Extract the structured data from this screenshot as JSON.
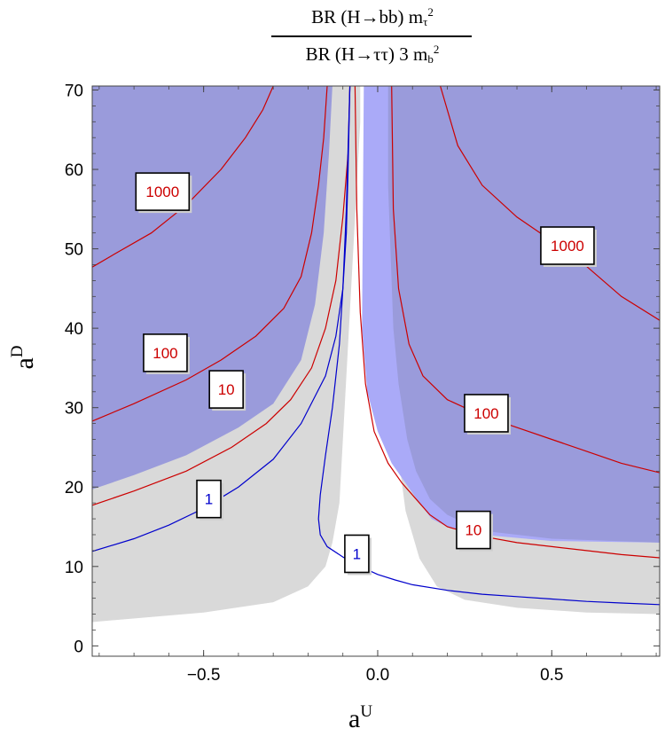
{
  "title": {
    "numerator": {
      "prefix": "BR (H→bb) m",
      "sub": "τ",
      "sup": "2"
    },
    "denominator": {
      "prefix": "BR (H→ττ) 3 m",
      "sub": "b",
      "sup": "2"
    }
  },
  "chart_data": {
    "type": "contour",
    "xlabel": {
      "base": "a",
      "sup": "U"
    },
    "ylabel": {
      "base": "a",
      "sup": "D"
    },
    "xlim": [
      -0.82,
      0.81
    ],
    "ylim": [
      -1.3,
      70.5
    ],
    "x_ticks": [
      -0.5,
      0.0,
      0.5
    ],
    "x_tick_labels": [
      "−0.5",
      "0.0",
      "0.5"
    ],
    "y_ticks": [
      0,
      10,
      20,
      30,
      40,
      50,
      60,
      70
    ],
    "y_tick_labels": [
      "0",
      "10",
      "20",
      "30",
      "40",
      "50",
      "60",
      "70"
    ],
    "colors": {
      "excluded": "#9a9bdb",
      "excluded_light": "#aaaaf8",
      "allowed_gray": "#d9d9d9",
      "contour_red": "#cc0000",
      "contour_blue": "#0000cc"
    },
    "regions": [
      {
        "color": "#d9d9d9",
        "points": [
          [
            -0.82,
            1
          ],
          [
            -0.82,
            70.5
          ],
          [
            -0.05,
            70.5
          ],
          [
            -0.05,
            66
          ],
          [
            -0.085,
            38
          ],
          [
            -0.11,
            18
          ],
          [
            -0.13,
            13
          ],
          [
            -0.15,
            10
          ],
          [
            -0.2,
            7.5
          ],
          [
            -0.3,
            5.5
          ],
          [
            -0.5,
            4.2
          ],
          [
            -0.82,
            3
          ],
          [
            -0.82,
            1
          ]
        ]
      },
      {
        "color": "#d9d9d9",
        "points": [
          [
            0.81,
            1
          ],
          [
            0.81,
            70.5
          ],
          [
            0.03,
            70.5
          ],
          [
            0.03,
            45
          ],
          [
            0.05,
            27
          ],
          [
            0.08,
            17
          ],
          [
            0.12,
            11
          ],
          [
            0.17,
            7.5
          ],
          [
            0.25,
            5.8
          ],
          [
            0.4,
            4.8
          ],
          [
            0.6,
            4.2
          ],
          [
            0.81,
            4
          ],
          [
            0.81,
            1
          ]
        ]
      },
      {
        "color": "#9a9bdb",
        "points": [
          [
            -0.82,
            19.7
          ],
          [
            -0.7,
            21.5
          ],
          [
            -0.55,
            24
          ],
          [
            -0.4,
            27.5
          ],
          [
            -0.3,
            30.5
          ],
          [
            -0.22,
            36
          ],
          [
            -0.18,
            43
          ],
          [
            -0.155,
            52
          ],
          [
            -0.14,
            62
          ],
          [
            -0.13,
            70.5
          ],
          [
            -0.82,
            70.5
          ]
        ]
      },
      {
        "color": "#aaaaf8",
        "points": [
          [
            -0.04,
            70.5
          ],
          [
            -0.045,
            40
          ],
          [
            -0.03,
            32
          ],
          [
            0.0,
            27
          ],
          [
            0.04,
            23
          ],
          [
            0.08,
            20.5
          ],
          [
            0.12,
            18
          ],
          [
            0.155,
            16
          ],
          [
            0.2,
            15
          ],
          [
            0.3,
            14
          ],
          [
            0.5,
            13.2
          ],
          [
            0.81,
            13
          ],
          [
            0.81,
            70.5
          ]
        ]
      },
      {
        "color": "#9a9bdb",
        "points": [
          [
            0.03,
            70.5
          ],
          [
            0.03,
            58
          ],
          [
            0.045,
            40
          ],
          [
            0.06,
            33
          ],
          [
            0.085,
            26
          ],
          [
            0.11,
            22
          ],
          [
            0.15,
            18.5
          ],
          [
            0.2,
            16.5
          ],
          [
            0.3,
            14.5
          ],
          [
            0.5,
            13.5
          ],
          [
            0.81,
            13
          ],
          [
            0.81,
            70.5
          ]
        ]
      }
    ],
    "series": [
      {
        "label": "1000",
        "color": "#cc0000",
        "points": [
          [
            -0.82,
            47.7
          ],
          [
            -0.75,
            49.5
          ],
          [
            -0.65,
            52
          ],
          [
            -0.55,
            55.5
          ],
          [
            -0.45,
            60
          ],
          [
            -0.38,
            64
          ],
          [
            -0.33,
            67.5
          ],
          [
            -0.3,
            70.5
          ]
        ]
      },
      {
        "label": "100",
        "color": "#cc0000",
        "points": [
          [
            -0.82,
            28.3
          ],
          [
            -0.7,
            30.5
          ],
          [
            -0.55,
            33.5
          ],
          [
            -0.45,
            36
          ],
          [
            -0.35,
            39
          ],
          [
            -0.27,
            42.5
          ],
          [
            -0.22,
            46.5
          ],
          [
            -0.19,
            52
          ],
          [
            -0.17,
            58
          ],
          [
            -0.155,
            64
          ],
          [
            -0.145,
            70.5
          ]
        ]
      },
      {
        "label": "10",
        "color": "#cc0000",
        "points": [
          [
            -0.82,
            17.7
          ],
          [
            -0.7,
            19.5
          ],
          [
            -0.55,
            22
          ],
          [
            -0.42,
            25
          ],
          [
            -0.32,
            28
          ],
          [
            -0.25,
            31
          ],
          [
            -0.19,
            35
          ],
          [
            -0.15,
            40
          ],
          [
            -0.12,
            46
          ],
          [
            -0.1,
            54
          ],
          [
            -0.085,
            62
          ],
          [
            -0.08,
            70.5
          ]
        ]
      },
      {
        "label": "1",
        "color": "#0000cc",
        "points": [
          [
            -0.82,
            11.9
          ],
          [
            -0.7,
            13.5
          ],
          [
            -0.6,
            15.2
          ],
          [
            -0.5,
            17.3
          ],
          [
            -0.4,
            20
          ],
          [
            -0.3,
            23.5
          ],
          [
            -0.22,
            28
          ],
          [
            -0.15,
            34
          ],
          [
            -0.12,
            39
          ],
          [
            -0.1,
            45
          ],
          [
            -0.09,
            52
          ],
          [
            -0.085,
            60
          ],
          [
            -0.08,
            70.5
          ]
        ]
      },
      {
        "label": "1",
        "color": "#0000cc",
        "points": [
          [
            -0.08,
            70.5
          ],
          [
            -0.09,
            55
          ],
          [
            -0.1,
            45
          ],
          [
            -0.11,
            38
          ],
          [
            -0.13,
            30
          ],
          [
            -0.15,
            24
          ],
          [
            -0.165,
            19
          ],
          [
            -0.17,
            16
          ],
          [
            -0.165,
            14
          ],
          [
            -0.145,
            12.5
          ],
          [
            -0.1,
            11.2
          ],
          [
            -0.05,
            10
          ],
          [
            0.0,
            9
          ],
          [
            0.05,
            8.3
          ],
          [
            0.1,
            7.7
          ],
          [
            0.2,
            7
          ],
          [
            0.3,
            6.5
          ],
          [
            0.4,
            6.2
          ],
          [
            0.5,
            5.9
          ],
          [
            0.6,
            5.6
          ],
          [
            0.7,
            5.4
          ],
          [
            0.81,
            5.2
          ]
        ]
      },
      {
        "label": "10",
        "color": "#cc0000",
        "points": [
          [
            -0.065,
            70.5
          ],
          [
            -0.06,
            55
          ],
          [
            -0.05,
            42
          ],
          [
            -0.035,
            33
          ],
          [
            -0.01,
            27
          ],
          [
            0.03,
            23
          ],
          [
            0.07,
            20.5
          ],
          [
            0.12,
            18
          ],
          [
            0.15,
            16.5
          ],
          [
            0.2,
            15
          ],
          [
            0.3,
            13.8
          ],
          [
            0.4,
            13
          ],
          [
            0.5,
            12.5
          ],
          [
            0.6,
            12
          ],
          [
            0.7,
            11.5
          ],
          [
            0.81,
            11.1
          ]
        ]
      },
      {
        "label": "100",
        "color": "#cc0000",
        "points": [
          [
            0.04,
            70.5
          ],
          [
            0.045,
            55
          ],
          [
            0.06,
            45
          ],
          [
            0.09,
            38
          ],
          [
            0.13,
            34
          ],
          [
            0.2,
            31
          ],
          [
            0.3,
            29
          ],
          [
            0.4,
            27.5
          ],
          [
            0.5,
            26
          ],
          [
            0.6,
            24.5
          ],
          [
            0.7,
            23
          ],
          [
            0.81,
            21.8
          ]
        ]
      },
      {
        "label": "1000",
        "color": "#cc0000",
        "points": [
          [
            0.18,
            70.5
          ],
          [
            0.23,
            63
          ],
          [
            0.3,
            58
          ],
          [
            0.4,
            54
          ],
          [
            0.5,
            51
          ],
          [
            0.6,
            47.8
          ],
          [
            0.7,
            44
          ],
          [
            0.81,
            41
          ]
        ]
      }
    ],
    "contour_labels": [
      {
        "text": "1000",
        "x": -0.618,
        "y": 57.2,
        "color": "#cc0000"
      },
      {
        "text": "100",
        "x": -0.61,
        "y": 36.9,
        "color": "#cc0000"
      },
      {
        "text": "10",
        "x": -0.435,
        "y": 32.3,
        "color": "#cc0000"
      },
      {
        "text": "1",
        "x": -0.485,
        "y": 18.5,
        "color": "#0000cc"
      },
      {
        "text": "1",
        "x": -0.06,
        "y": 11.6,
        "color": "#0000cc"
      },
      {
        "text": "10",
        "x": 0.275,
        "y": 14.6,
        "color": "#cc0000"
      },
      {
        "text": "100",
        "x": 0.312,
        "y": 29.3,
        "color": "#cc0000"
      },
      {
        "text": "1000",
        "x": 0.545,
        "y": 50.4,
        "color": "#cc0000"
      }
    ]
  }
}
